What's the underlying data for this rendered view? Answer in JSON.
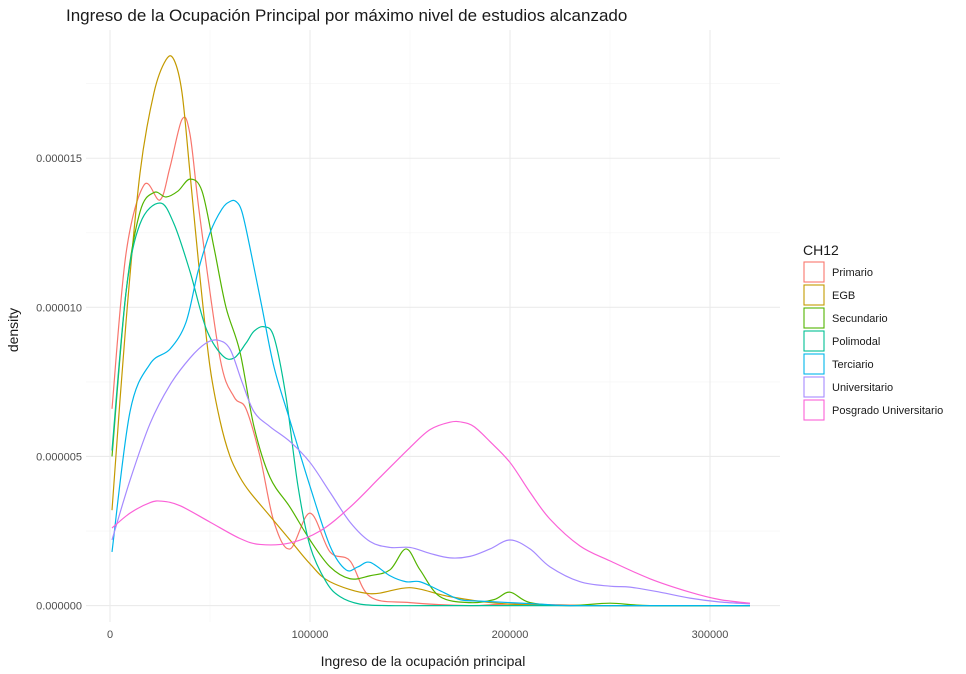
{
  "chart_data": {
    "type": "line",
    "title": "Ingreso de la Ocupación Principal por máximo nivel de estudios alcanzado",
    "xlabel": "Ingreso de la ocupación principal",
    "ylabel": "density",
    "xlim": [
      -12000,
      335000
    ],
    "ylim": [
      -5.5e-07,
      1.93e-05
    ],
    "x_ticks": [
      0,
      100000,
      200000,
      300000
    ],
    "x_tick_labels": [
      "0",
      "100000",
      "200000",
      "300000"
    ],
    "y_ticks": [
      0,
      5e-06,
      1e-05,
      1.5e-05
    ],
    "y_tick_labels": [
      "0.000000",
      "0.000005",
      "0.000010",
      "0.000015"
    ],
    "grid": true,
    "legend": {
      "title": "CH12",
      "position": "right"
    },
    "series": [
      {
        "name": "Primario",
        "color": "#F8766D",
        "x": [
          1000,
          8000,
          17000,
          25000,
          30000,
          36000,
          40000,
          45000,
          55000,
          62000,
          68000,
          75000,
          82000,
          90000,
          100000,
          110000,
          120000,
          130000,
          150000,
          180000,
          200000,
          250000,
          320000
        ],
        "y": [
          6.6e-06,
          1.18e-05,
          1.41e-05,
          1.36e-05,
          1.47e-05,
          1.63e-05,
          1.58e-05,
          1.3e-05,
          8.3e-06,
          7e-06,
          6.6e-06,
          5e-06,
          2.8e-06,
          1.9e-06,
          3.1e-06,
          1.8e-06,
          1.5e-06,
          3e-07,
          1e-07,
          0,
          5e-08,
          0,
          0
        ]
      },
      {
        "name": "EGB",
        "color": "#C49A00",
        "x": [
          1000,
          8000,
          15000,
          22000,
          28000,
          32000,
          36000,
          40000,
          45000,
          50000,
          55000,
          60000,
          65000,
          70000,
          80000,
          90000,
          100000,
          110000,
          130000,
          150000,
          170000,
          200000,
          250000,
          320000
        ],
        "y": [
          3.2e-06,
          9.5e-06,
          1.45e-05,
          1.72e-05,
          1.83e-05,
          1.83e-05,
          1.72e-05,
          1.45e-05,
          1.1e-05,
          8e-06,
          6.2e-06,
          5e-06,
          4.3e-06,
          3.8e-06,
          3e-06,
          2.2e-06,
          1.4e-06,
          8e-07,
          4e-07,
          6e-07,
          3e-07,
          5e-08,
          0,
          0
        ]
      },
      {
        "name": "Secundario",
        "color": "#53B400",
        "x": [
          1000,
          8000,
          15000,
          22000,
          28000,
          34000,
          40000,
          46000,
          52000,
          58000,
          65000,
          72000,
          80000,
          90000,
          100000,
          110000,
          120000,
          130000,
          140000,
          148000,
          155000,
          165000,
          180000,
          192000,
          200000,
          210000,
          230000,
          250000,
          270000,
          320000
        ],
        "y": [
          5e-06,
          1.05e-05,
          1.32e-05,
          1.385e-05,
          1.37e-05,
          1.39e-05,
          1.43e-05,
          1.39e-05,
          1.2e-05,
          1e-05,
          8.5e-06,
          6e-06,
          4.3e-06,
          3.3e-06,
          2.2e-06,
          1.3e-06,
          9e-07,
          1e-06,
          1.2e-06,
          1.9e-06,
          1.2e-06,
          3e-07,
          1e-07,
          2e-07,
          4.5e-07,
          1e-07,
          0,
          8e-08,
          0,
          0
        ]
      },
      {
        "name": "Polimodal",
        "color": "#00C094",
        "x": [
          1000,
          8000,
          15000,
          25000,
          32000,
          40000,
          48000,
          56000,
          62000,
          68000,
          72000,
          77000,
          82000,
          88000,
          94000,
          100000,
          108000,
          115000,
          125000,
          140000,
          160000,
          200000,
          250000,
          320000
        ],
        "y": [
          5.2e-06,
          1.05e-05,
          1.28e-05,
          1.35e-05,
          1.28e-05,
          1.12e-05,
          9.3e-06,
          8.4e-06,
          8.3e-06,
          8.8e-06,
          9.2e-06,
          9.35e-06,
          9e-06,
          7e-06,
          4e-06,
          2e-06,
          8e-07,
          3e-07,
          5e-08,
          0,
          0,
          0,
          0,
          0
        ]
      },
      {
        "name": "Terciario",
        "color": "#00B6EB",
        "x": [
          1000,
          10000,
          20000,
          30000,
          38000,
          44000,
          50000,
          56000,
          60000,
          63000,
          66000,
          70000,
          76000,
          82000,
          90000,
          100000,
          110000,
          118000,
          124000,
          130000,
          140000,
          148000,
          155000,
          165000,
          175000,
          185000,
          200000,
          215000,
          230000,
          260000,
          320000
        ],
        "y": [
          1.8e-06,
          6.5e-06,
          8.1e-06,
          8.6e-06,
          9.5e-06,
          1.12e-05,
          1.25e-05,
          1.33e-05,
          1.355e-05,
          1.355e-05,
          1.32e-05,
          1.2e-05,
          1e-05,
          8e-06,
          6.2e-06,
          4e-06,
          2e-06,
          1.2e-06,
          1.3e-06,
          1.45e-06,
          1e-06,
          8e-07,
          8e-07,
          5e-07,
          2e-07,
          1.5e-07,
          1e-07,
          5e-08,
          0,
          0,
          0
        ]
      },
      {
        "name": "Universitario",
        "color": "#A58AFF",
        "x": [
          1000,
          10000,
          20000,
          30000,
          40000,
          48000,
          54000,
          60000,
          66000,
          72000,
          80000,
          90000,
          100000,
          110000,
          120000,
          130000,
          140000,
          150000,
          160000,
          170000,
          180000,
          190000,
          200000,
          210000,
          220000,
          235000,
          250000,
          260000,
          275000,
          290000,
          305000,
          320000
        ],
        "y": [
          2.2e-06,
          4.2e-06,
          6.1e-06,
          7.4e-06,
          8.3e-06,
          8.8e-06,
          8.9e-06,
          8.6e-06,
          7.5e-06,
          6.5e-06,
          6e-06,
          5.5e-06,
          4.8e-06,
          3.8e-06,
          2.8e-06,
          2.15e-06,
          1.95e-06,
          1.95e-06,
          1.75e-06,
          1.6e-06,
          1.65e-06,
          1.9e-06,
          2.2e-06,
          1.9e-06,
          1.3e-06,
          8e-07,
          6.5e-07,
          6.2e-07,
          4.5e-07,
          2.5e-07,
          1.2e-07,
          6e-08
        ]
      },
      {
        "name": "Posgrado Universitario",
        "color": "#FB61D7",
        "x": [
          1000,
          10000,
          20000,
          26000,
          35000,
          50000,
          65000,
          75000,
          90000,
          105000,
          120000,
          135000,
          150000,
          160000,
          170000,
          176000,
          182000,
          190000,
          200000,
          210000,
          220000,
          235000,
          250000,
          270000,
          290000,
          305000,
          320000
        ],
        "y": [
          2.6e-06,
          3.1e-06,
          3.45e-06,
          3.5e-06,
          3.35e-06,
          2.8e-06,
          2.25e-06,
          2.05e-06,
          2.1e-06,
          2.5e-06,
          3.3e-06,
          4.3e-06,
          5.3e-06,
          5.9e-06,
          6.15e-06,
          6.15e-06,
          6e-06,
          5.5e-06,
          4.8e-06,
          3.8e-06,
          2.9e-06,
          2e-06,
          1.5e-06,
          9e-07,
          4.5e-07,
          2e-07,
          8e-08
        ]
      }
    ]
  }
}
